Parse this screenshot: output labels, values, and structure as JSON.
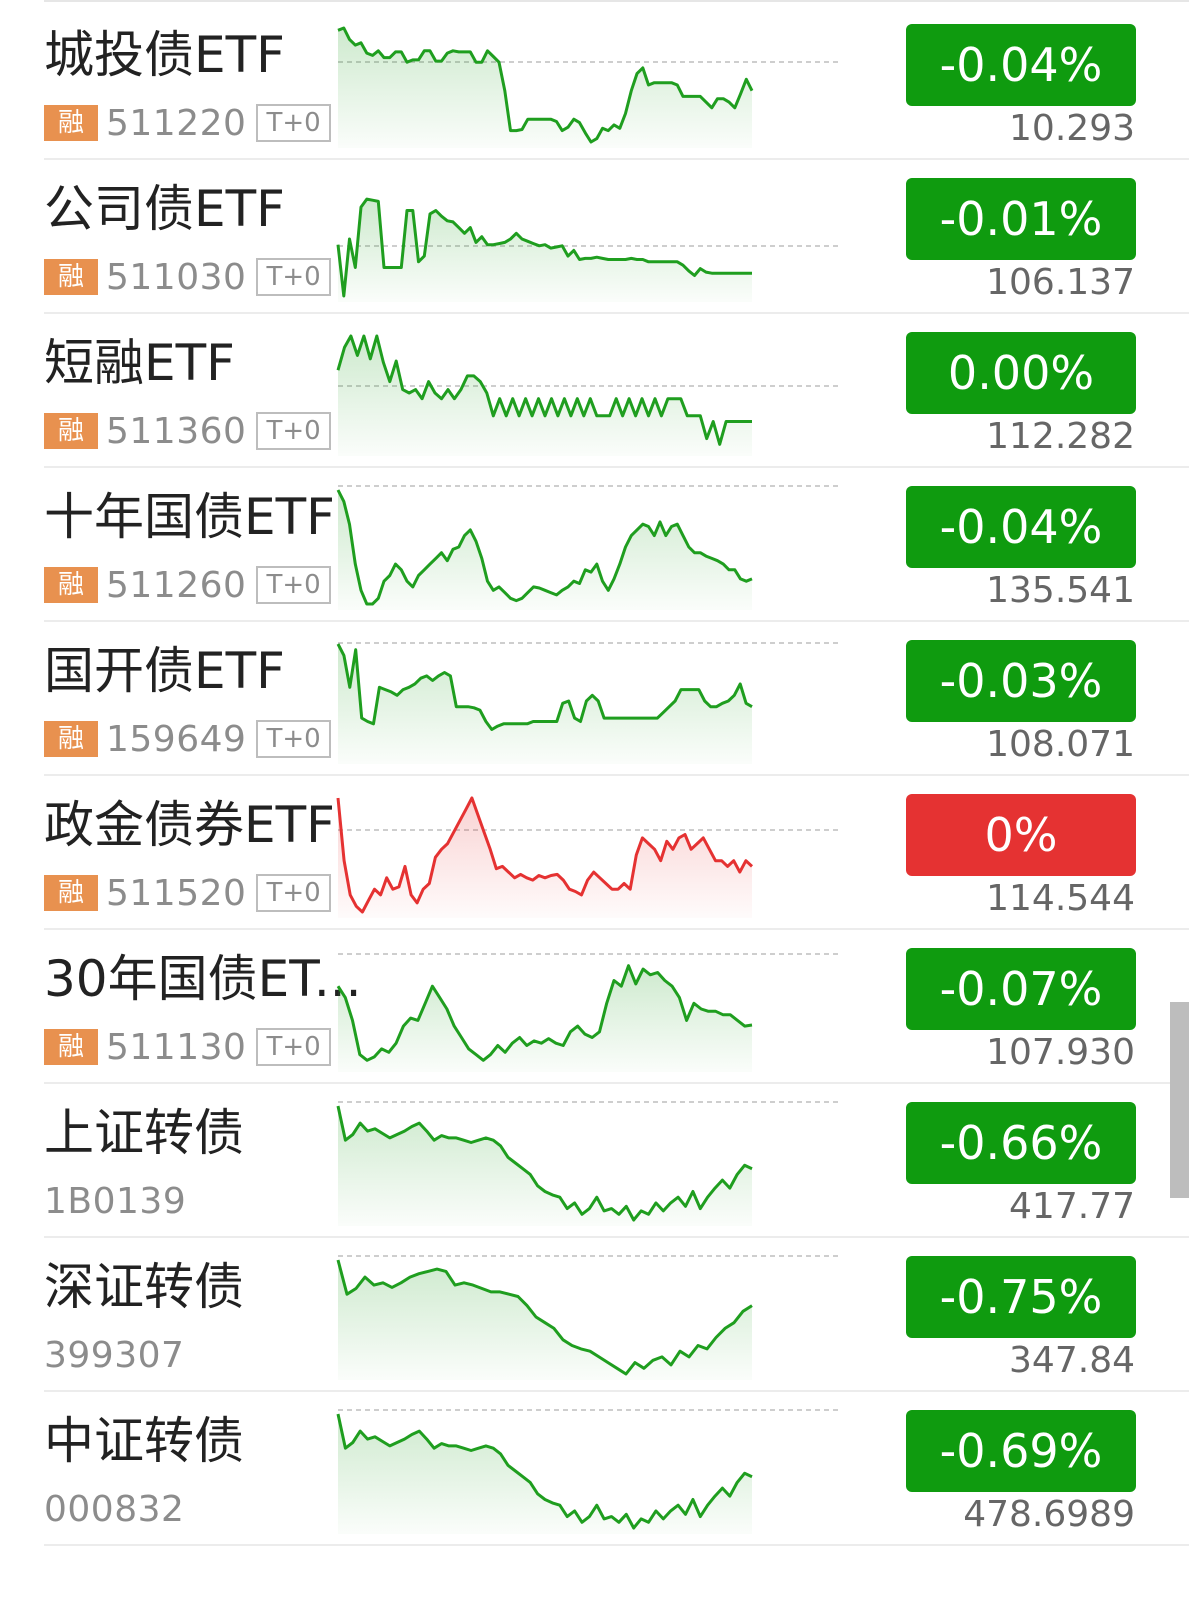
{
  "colors": {
    "down": "#0f9b0f",
    "up": "#e53232",
    "line_down": "#1f9e1f",
    "line_up": "#e53232",
    "badge": "#e8914f",
    "muted": "#8c8c8c"
  },
  "items": [
    {
      "name": "城投债ETF",
      "badge": "融",
      "code": "511220",
      "tag": "T+0",
      "change": "-0.04%",
      "price": "10.293",
      "trend": "down",
      "series": [
        0.98,
        1.0,
        0.9,
        0.85,
        0.87,
        0.78,
        0.76,
        0.8,
        0.74,
        0.74,
        0.79,
        0.79,
        0.7,
        0.72,
        0.72,
        0.8,
        0.8,
        0.71,
        0.71,
        0.78,
        0.8,
        0.79,
        0.79,
        0.79,
        0.7,
        0.7,
        0.8,
        0.75,
        0.7,
        0.45,
        0.1,
        0.1,
        0.11,
        0.2,
        0.2,
        0.2,
        0.2,
        0.2,
        0.18,
        0.1,
        0.13,
        0.2,
        0.17,
        0.08,
        0.0,
        0.03,
        0.12,
        0.1,
        0.15,
        0.12,
        0.25,
        0.45,
        0.6,
        0.65,
        0.5,
        0.52,
        0.52,
        0.52,
        0.52,
        0.5,
        0.4,
        0.4,
        0.4,
        0.4,
        0.35,
        0.3,
        0.38,
        0.38,
        0.35,
        0.3,
        0.42,
        0.55,
        0.45
      ]
    },
    {
      "name": "公司债ETF",
      "badge": "融",
      "code": "511030",
      "tag": "T+0",
      "change": "-0.01%",
      "price": "106.137",
      "trend": "down",
      "series": [
        0.45,
        0.0,
        0.5,
        0.25,
        0.78,
        0.85,
        0.84,
        0.83,
        0.25,
        0.25,
        0.25,
        0.25,
        0.75,
        0.75,
        0.3,
        0.35,
        0.72,
        0.75,
        0.7,
        0.66,
        0.65,
        0.6,
        0.55,
        0.6,
        0.47,
        0.52,
        0.45,
        0.45,
        0.46,
        0.47,
        0.5,
        0.55,
        0.5,
        0.48,
        0.46,
        0.44,
        0.45,
        0.42,
        0.43,
        0.44,
        0.35,
        0.4,
        0.32,
        0.33,
        0.33,
        0.34,
        0.33,
        0.32,
        0.32,
        0.32,
        0.32,
        0.33,
        0.32,
        0.32,
        0.3,
        0.3,
        0.3,
        0.3,
        0.3,
        0.3,
        0.27,
        0.22,
        0.18,
        0.24,
        0.21,
        0.2,
        0.2,
        0.2,
        0.2,
        0.2,
        0.2,
        0.2,
        0.2
      ]
    },
    {
      "name": "短融ETF",
      "badge": "融",
      "code": "511360",
      "tag": "T+0",
      "change": "0.00%",
      "price": "112.282",
      "trend": "down",
      "series": [
        0.7,
        0.9,
        1.0,
        0.83,
        1.0,
        0.8,
        1.0,
        0.77,
        0.6,
        0.78,
        0.53,
        0.5,
        0.53,
        0.45,
        0.6,
        0.5,
        0.45,
        0.53,
        0.45,
        0.53,
        0.65,
        0.65,
        0.6,
        0.5,
        0.3,
        0.45,
        0.3,
        0.45,
        0.3,
        0.45,
        0.3,
        0.45,
        0.3,
        0.45,
        0.3,
        0.45,
        0.3,
        0.45,
        0.3,
        0.45,
        0.3,
        0.3,
        0.3,
        0.45,
        0.3,
        0.45,
        0.3,
        0.45,
        0.3,
        0.45,
        0.3,
        0.45,
        0.45,
        0.45,
        0.3,
        0.3,
        0.3,
        0.1,
        0.25,
        0.05,
        0.25,
        0.25,
        0.25,
        0.25,
        0.25
      ]
    },
    {
      "name": "十年国债ETF",
      "badge": "融",
      "code": "511260",
      "tag": "T+0",
      "change": "-0.04%",
      "price": "135.541",
      "trend": "down",
      "series": [
        1.0,
        0.9,
        0.7,
        0.35,
        0.12,
        0.0,
        0.0,
        0.05,
        0.2,
        0.25,
        0.35,
        0.3,
        0.2,
        0.15,
        0.25,
        0.3,
        0.35,
        0.4,
        0.45,
        0.38,
        0.48,
        0.5,
        0.6,
        0.65,
        0.55,
        0.4,
        0.2,
        0.12,
        0.15,
        0.1,
        0.05,
        0.03,
        0.05,
        0.1,
        0.15,
        0.14,
        0.12,
        0.1,
        0.08,
        0.12,
        0.15,
        0.2,
        0.18,
        0.3,
        0.28,
        0.35,
        0.2,
        0.12,
        0.22,
        0.35,
        0.5,
        0.6,
        0.65,
        0.7,
        0.68,
        0.6,
        0.72,
        0.6,
        0.68,
        0.7,
        0.6,
        0.5,
        0.45,
        0.45,
        0.42,
        0.4,
        0.38,
        0.35,
        0.3,
        0.3,
        0.22,
        0.2,
        0.22
      ]
    },
    {
      "name": "国开债ETF",
      "badge": "融",
      "code": "159649",
      "tag": "T+0",
      "change": "-0.03%",
      "price": "108.071",
      "trend": "down",
      "series": [
        1.0,
        0.9,
        0.62,
        0.95,
        0.35,
        0.32,
        0.3,
        0.62,
        0.6,
        0.58,
        0.55,
        0.6,
        0.62,
        0.65,
        0.7,
        0.72,
        0.68,
        0.72,
        0.75,
        0.72,
        0.45,
        0.45,
        0.45,
        0.44,
        0.42,
        0.32,
        0.25,
        0.28,
        0.3,
        0.3,
        0.3,
        0.3,
        0.3,
        0.32,
        0.32,
        0.32,
        0.32,
        0.32,
        0.48,
        0.5,
        0.35,
        0.32,
        0.5,
        0.55,
        0.5,
        0.35,
        0.35,
        0.35,
        0.35,
        0.35,
        0.35,
        0.35,
        0.35,
        0.35,
        0.35,
        0.4,
        0.45,
        0.5,
        0.6,
        0.6,
        0.6,
        0.6,
        0.5,
        0.45,
        0.45,
        0.48,
        0.5,
        0.55,
        0.65,
        0.48,
        0.45
      ]
    },
    {
      "name": "政金债券ETF",
      "badge": "融",
      "code": "511520",
      "tag": "T+0",
      "change": "0%",
      "price": "114.544",
      "trend": "up",
      "series": [
        1.0,
        0.45,
        0.15,
        0.05,
        0.0,
        0.1,
        0.2,
        0.15,
        0.3,
        0.2,
        0.22,
        0.4,
        0.15,
        0.08,
        0.2,
        0.25,
        0.48,
        0.55,
        0.6,
        0.7,
        0.8,
        0.9,
        1.0,
        0.85,
        0.7,
        0.55,
        0.38,
        0.4,
        0.35,
        0.3,
        0.33,
        0.3,
        0.28,
        0.32,
        0.3,
        0.32,
        0.33,
        0.28,
        0.2,
        0.18,
        0.15,
        0.28,
        0.35,
        0.3,
        0.25,
        0.2,
        0.2,
        0.25,
        0.2,
        0.5,
        0.65,
        0.6,
        0.55,
        0.45,
        0.62,
        0.55,
        0.65,
        0.68,
        0.55,
        0.6,
        0.65,
        0.55,
        0.45,
        0.45,
        0.4,
        0.45,
        0.35,
        0.45,
        0.4
      ]
    },
    {
      "name": "30年国债ET...",
      "badge": "融",
      "code": "511130",
      "tag": "T+0",
      "change": "-0.07%",
      "price": "107.930",
      "trend": "down",
      "series": [
        0.7,
        0.6,
        0.4,
        0.1,
        0.05,
        0.08,
        0.15,
        0.12,
        0.2,
        0.35,
        0.42,
        0.4,
        0.55,
        0.7,
        0.6,
        0.5,
        0.35,
        0.25,
        0.15,
        0.1,
        0.05,
        0.1,
        0.18,
        0.12,
        0.2,
        0.25,
        0.18,
        0.22,
        0.2,
        0.24,
        0.2,
        0.18,
        0.3,
        0.35,
        0.28,
        0.25,
        0.3,
        0.55,
        0.75,
        0.7,
        0.88,
        0.72,
        0.85,
        0.8,
        0.82,
        0.75,
        0.7,
        0.6,
        0.4,
        0.55,
        0.5,
        0.48,
        0.48,
        0.45,
        0.45,
        0.4,
        0.35,
        0.36
      ]
    },
    {
      "name": "上证转债",
      "badge": "",
      "code": "1B0139",
      "tag": "",
      "change": "-0.66%",
      "price": "417.77",
      "trend": "down",
      "series": [
        1.0,
        0.7,
        0.75,
        0.85,
        0.78,
        0.8,
        0.76,
        0.72,
        0.75,
        0.78,
        0.82,
        0.85,
        0.78,
        0.7,
        0.74,
        0.72,
        0.72,
        0.7,
        0.68,
        0.7,
        0.72,
        0.7,
        0.65,
        0.55,
        0.5,
        0.45,
        0.4,
        0.3,
        0.25,
        0.22,
        0.2,
        0.1,
        0.15,
        0.05,
        0.1,
        0.2,
        0.08,
        0.1,
        0.05,
        0.12,
        0.0,
        0.08,
        0.05,
        0.15,
        0.08,
        0.15,
        0.2,
        0.12,
        0.25,
        0.1,
        0.2,
        0.28,
        0.35,
        0.28,
        0.4,
        0.48,
        0.45
      ]
    },
    {
      "name": "深证转债",
      "badge": "",
      "code": "399307",
      "tag": "",
      "change": "-0.75%",
      "price": "347.84",
      "trend": "down",
      "series": [
        1.0,
        0.7,
        0.75,
        0.85,
        0.78,
        0.8,
        0.76,
        0.8,
        0.85,
        0.88,
        0.9,
        0.92,
        0.9,
        0.78,
        0.8,
        0.78,
        0.75,
        0.72,
        0.72,
        0.7,
        0.68,
        0.6,
        0.5,
        0.45,
        0.4,
        0.3,
        0.25,
        0.22,
        0.2,
        0.15,
        0.1,
        0.05,
        0.0,
        0.1,
        0.05,
        0.12,
        0.15,
        0.08,
        0.2,
        0.15,
        0.25,
        0.22,
        0.32,
        0.4,
        0.45,
        0.55,
        0.6
      ]
    },
    {
      "name": "中证转债",
      "badge": "",
      "code": "000832",
      "tag": "",
      "change": "-0.69%",
      "price": "478.6989",
      "trend": "down",
      "series": [
        1.0,
        0.7,
        0.75,
        0.85,
        0.78,
        0.8,
        0.76,
        0.72,
        0.75,
        0.78,
        0.82,
        0.85,
        0.78,
        0.7,
        0.74,
        0.72,
        0.72,
        0.7,
        0.68,
        0.7,
        0.72,
        0.7,
        0.65,
        0.55,
        0.5,
        0.45,
        0.4,
        0.3,
        0.25,
        0.22,
        0.2,
        0.1,
        0.15,
        0.05,
        0.1,
        0.2,
        0.08,
        0.1,
        0.05,
        0.12,
        0.0,
        0.08,
        0.05,
        0.15,
        0.08,
        0.15,
        0.2,
        0.12,
        0.25,
        0.1,
        0.2,
        0.28,
        0.35,
        0.28,
        0.4,
        0.48,
        0.45
      ]
    }
  ]
}
